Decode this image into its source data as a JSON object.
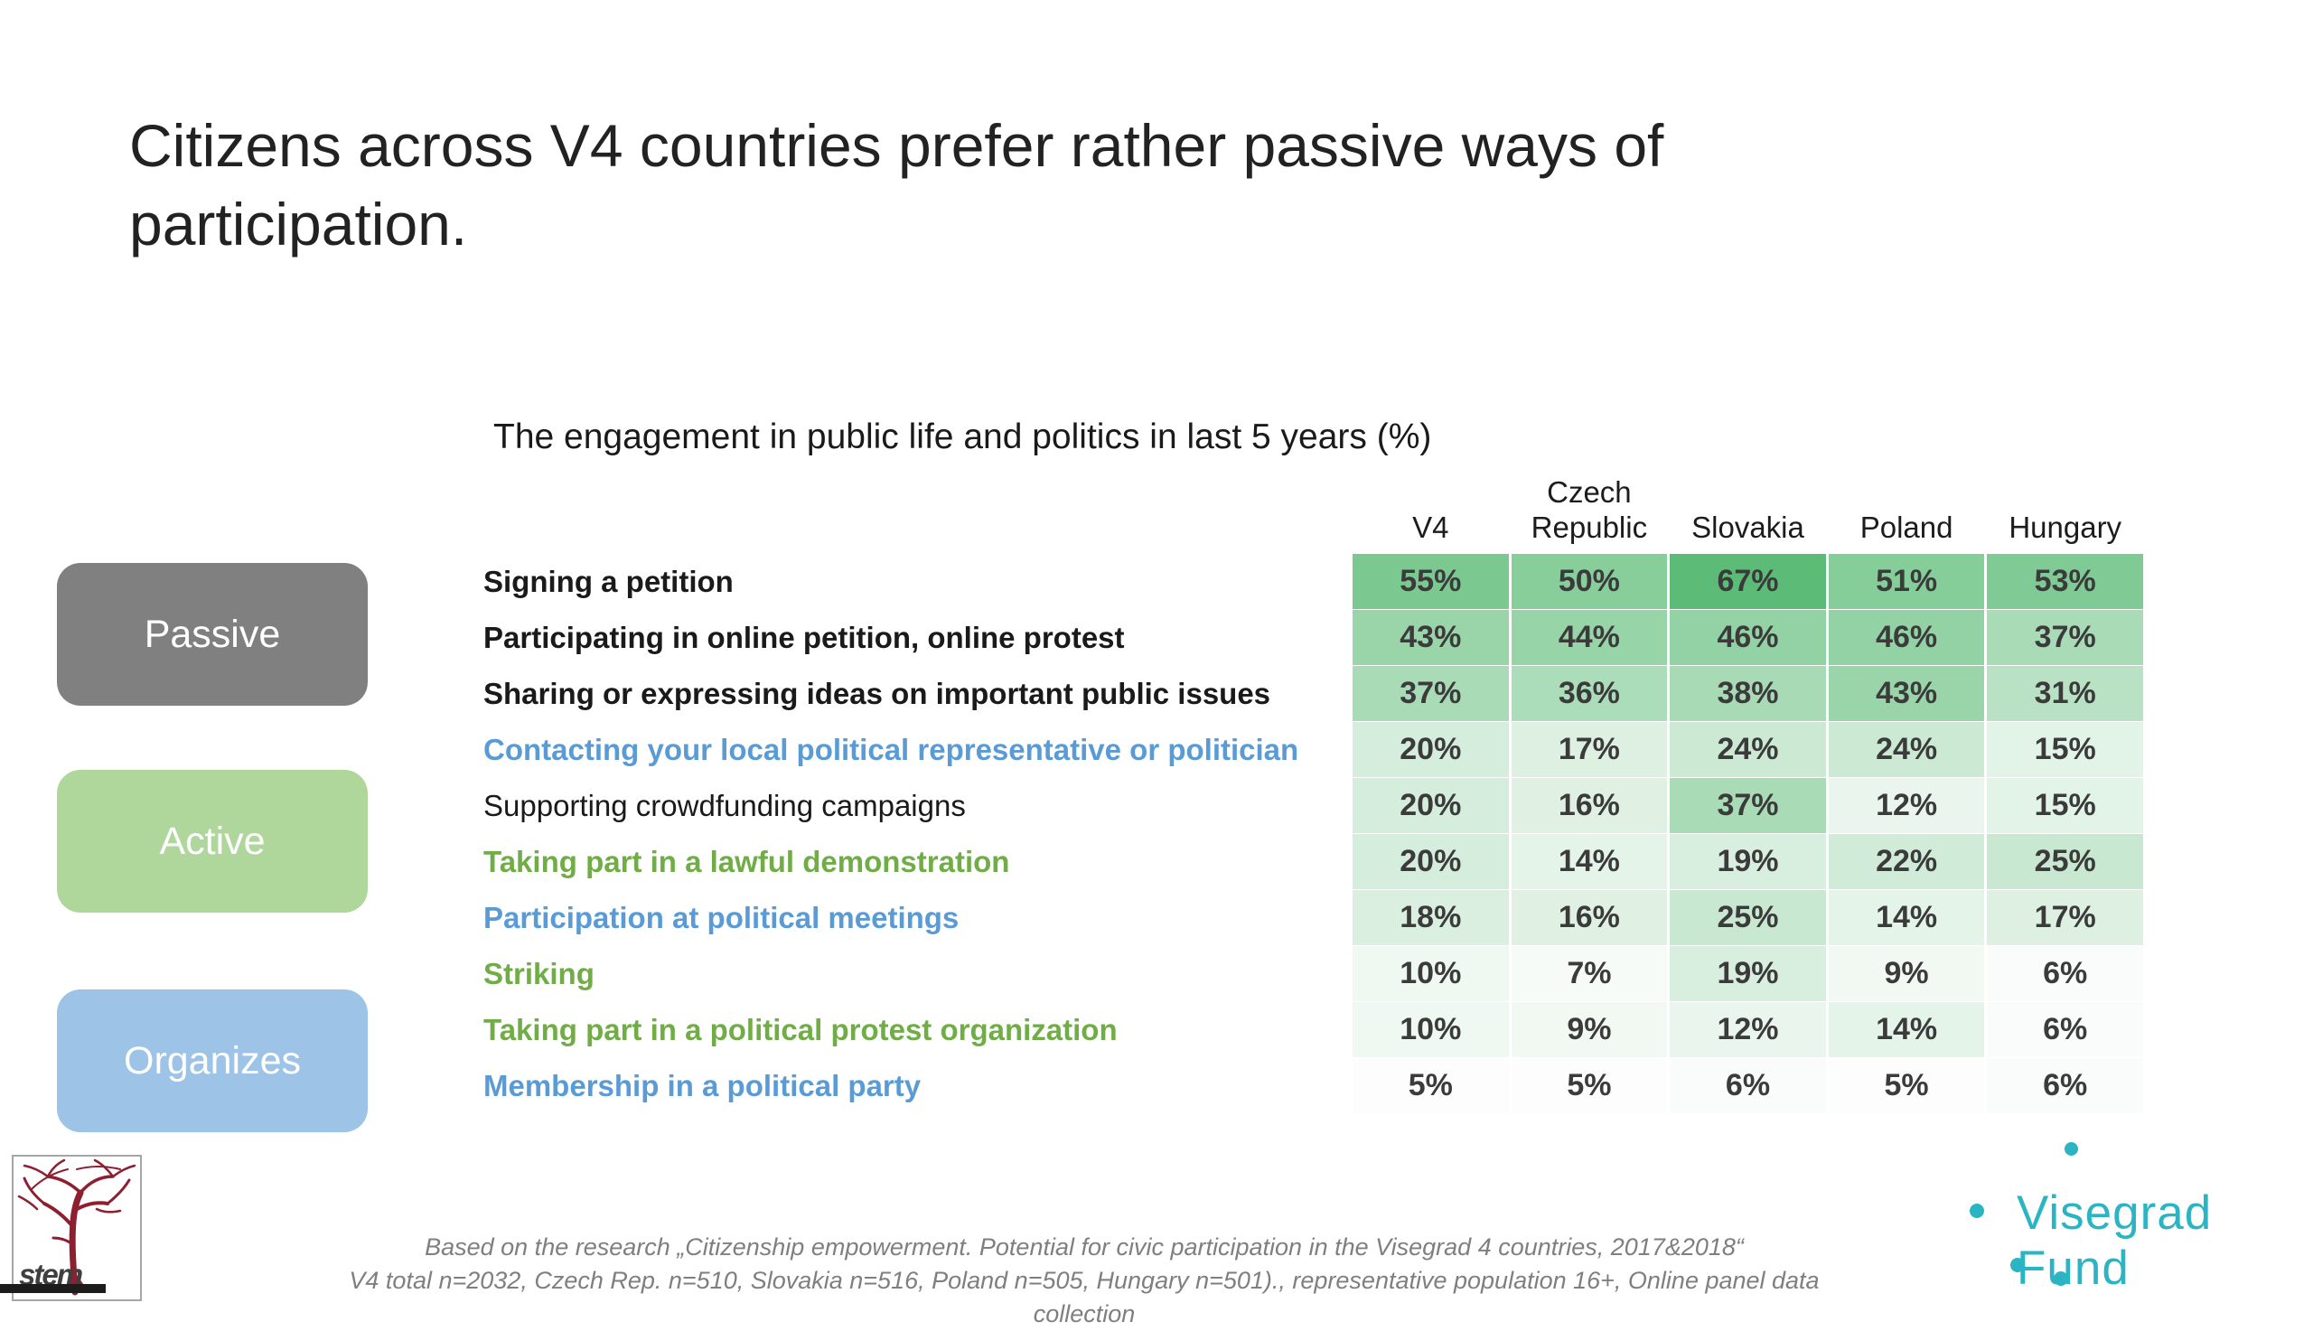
{
  "slide": {
    "title": "Citizens across V4 countries prefer rather passive ways of participation.",
    "footer_line1": "Based on the research  „Citizenship empowerment. Potential for civic participation in the Visegrad 4 countries, 2017&2018“",
    "footer_line2": "V4 total n=2032, Czech Rep. n=510, Slovakia n=516, Poland n=505, Hungary n=501)., representative population 16+, Online panel data collection"
  },
  "legend": {
    "items": [
      {
        "label": "Passive",
        "color": "#808080"
      },
      {
        "label": "Active",
        "color": "#AFD69B"
      },
      {
        "label": "Organizes",
        "color": "#9DC3E6"
      }
    ]
  },
  "chart_data": {
    "type": "heatmap",
    "title": "The engagement in public life and politics in last 5 years (%)",
    "unit": "%",
    "columns": [
      "V4",
      "Czech Republic",
      "Slovakia",
      "Poland",
      "Hungary"
    ],
    "rows": [
      {
        "label": "Signing a petition",
        "label_style": "bold-black",
        "values": [
          55,
          50,
          67,
          51,
          53
        ]
      },
      {
        "label": "Participating in online petition, online protest",
        "label_style": "bold-black",
        "values": [
          43,
          44,
          46,
          46,
          37
        ]
      },
      {
        "label": "Sharing or expressing ideas on important public issues",
        "label_style": "bold-black",
        "values": [
          37,
          36,
          38,
          43,
          31
        ]
      },
      {
        "label": "Contacting your local political representative or politician",
        "label_style": "blue",
        "values": [
          20,
          17,
          24,
          24,
          15
        ]
      },
      {
        "label": "Supporting crowdfunding campaigns",
        "label_style": "black",
        "values": [
          20,
          16,
          37,
          12,
          15
        ]
      },
      {
        "label": "Taking part in a lawful demonstration",
        "label_style": "green",
        "values": [
          20,
          14,
          19,
          22,
          25
        ]
      },
      {
        "label": "Participation at political meetings",
        "label_style": "blue",
        "values": [
          18,
          16,
          25,
          14,
          17
        ]
      },
      {
        "label": "Striking",
        "label_style": "green",
        "values": [
          10,
          7,
          19,
          9,
          6
        ]
      },
      {
        "label": "Taking part in a political protest organization",
        "label_style": "green",
        "values": [
          10,
          9,
          12,
          14,
          6
        ]
      },
      {
        "label": "Membership in a political party",
        "label_style": "blue",
        "values": [
          5,
          5,
          6,
          5,
          6
        ]
      }
    ],
    "color_scale": {
      "min": 5,
      "max": 67,
      "low": "#FCFDFC",
      "high": "#5CBC77"
    },
    "label_colors": {
      "bold-black": "#1A1A1A",
      "black": "#1A1A1A",
      "blue": "#5B9BD5",
      "green": "#70AD47"
    },
    "legend_position": "left",
    "grid": false
  },
  "logos": {
    "stem_text": "stem",
    "visegrad_text": "Visegrad Fund",
    "visegrad_color": "#2BB5C4"
  }
}
